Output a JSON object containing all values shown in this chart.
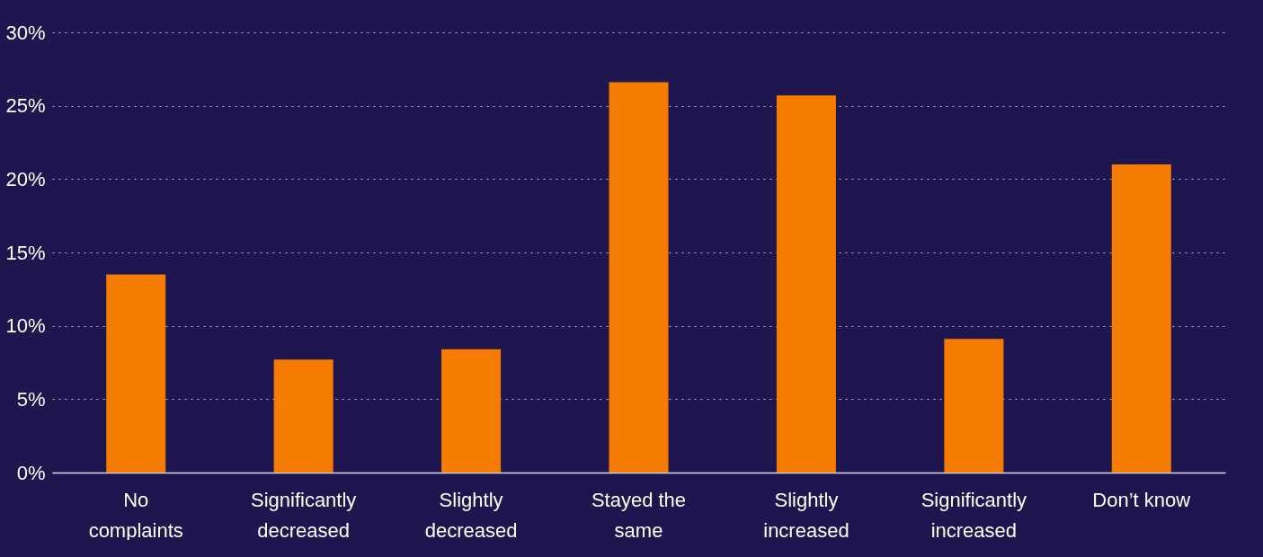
{
  "chart_data": {
    "type": "bar",
    "categories": [
      "No complaints",
      "Significantly decreased",
      "Slightly decreased",
      "Stayed the same",
      "Slightly increased",
      "Significantly increased",
      "Don’t know"
    ],
    "values": [
      13.5,
      7.7,
      8.4,
      26.6,
      25.7,
      9.1,
      21.0
    ],
    "color": "#f57c00",
    "ylim": [
      0,
      30
    ],
    "yticks": [
      {
        "value": 0,
        "label": "0%"
      },
      {
        "value": 5,
        "label": "5%"
      },
      {
        "value": 10,
        "label": "10%"
      },
      {
        "value": 15,
        "label": "15%"
      },
      {
        "value": 20,
        "label": "20%"
      },
      {
        "value": 25,
        "label": "25%"
      },
      {
        "value": 30,
        "label": "30%"
      }
    ],
    "grid": "y"
  }
}
